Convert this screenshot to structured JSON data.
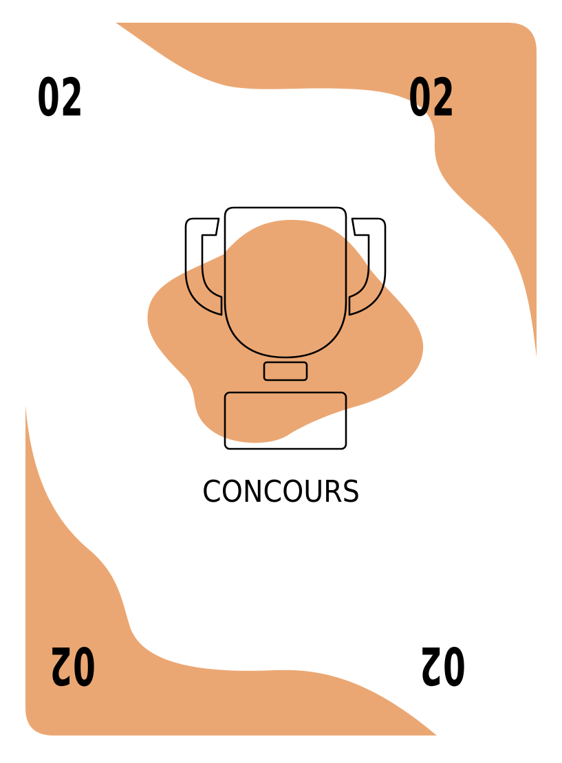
{
  "card": {
    "number": "02",
    "label": "CONCOURS",
    "icon": "trophy-icon"
  },
  "colors": {
    "accent": "#EBA773",
    "background": "#FFFFFF",
    "ink": "#000000"
  }
}
